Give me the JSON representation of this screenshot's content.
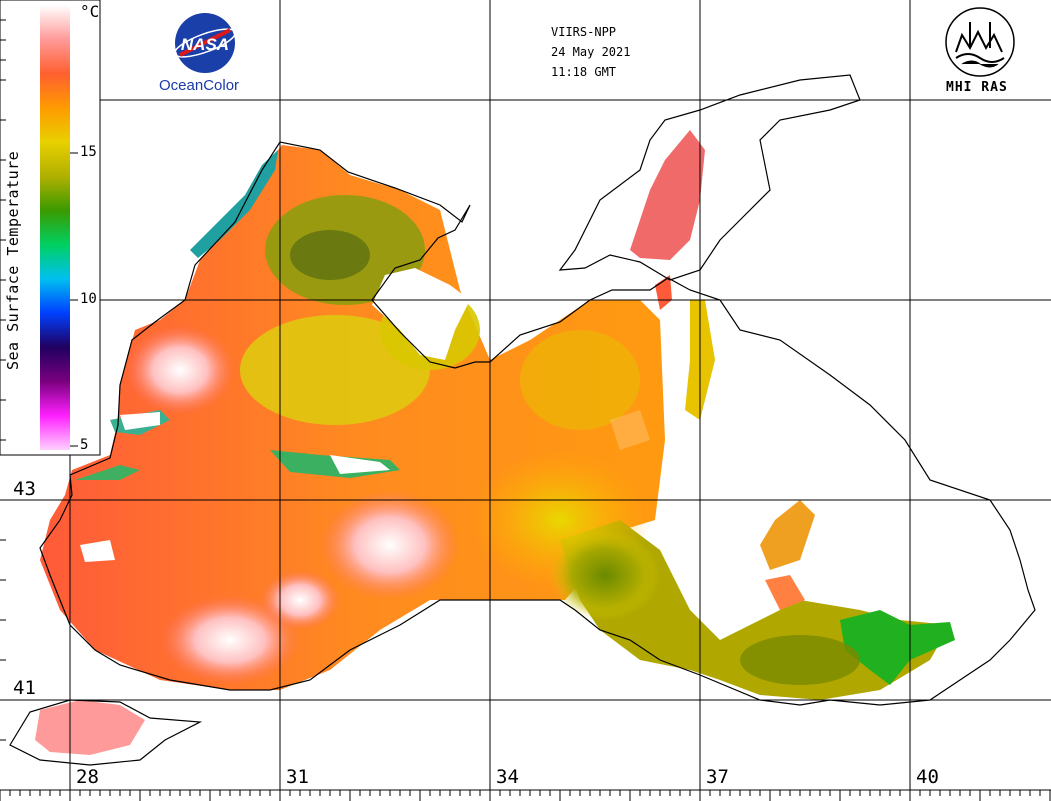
{
  "header": {
    "sensor": "VIIRS-NPP",
    "date": "24 May 2021",
    "time": "11:18 GMT"
  },
  "logos": {
    "nasa_text": "NASA",
    "nasa_caption": "OceanColor",
    "institute": "MHI RAS"
  },
  "colorbar": {
    "title": "Sea Surface Temperature",
    "unit": "°C",
    "ticks": [
      "15",
      "10",
      "5"
    ],
    "colors_top_to_bottom": [
      "#ffffff",
      "#ff9a9a",
      "#ff6030",
      "#ff9a00",
      "#e8d000",
      "#b0b000",
      "#3a9a00",
      "#00d060",
      "#00c0f0",
      "#0040ff",
      "#200060",
      "#7a0080",
      "#ff20ff",
      "#ffd0ff"
    ]
  },
  "axes": {
    "latitudes": [
      "43",
      "41"
    ],
    "longitudes": [
      "28",
      "31",
      "34",
      "37",
      "40"
    ]
  },
  "colors": {
    "land": "#ffffff",
    "coast": "#000000",
    "warm": "#ff7a30",
    "hot": "#ffb0b0",
    "mild": "#d8c800",
    "cool": "#7c8f00",
    "cold": "#20b020"
  }
}
